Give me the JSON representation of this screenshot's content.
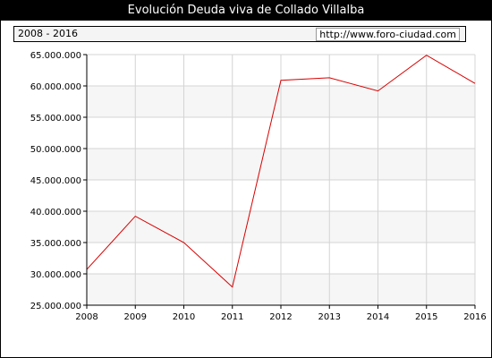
{
  "title": "Evolución Deuda viva de Collado Villalba",
  "header": {
    "range_label": "2008 - 2016",
    "source_url": "http://www.foro-ciudad.com"
  },
  "colors": {
    "line": "#d80000",
    "band": "#f6f6f6",
    "grid": "#d4d4d4",
    "title_bg": "#000000"
  },
  "chart_data": {
    "type": "line",
    "title": "Evolución Deuda viva de Collado Villalba",
    "xlabel": "",
    "ylabel": "",
    "categories": [
      "2008",
      "2009",
      "2010",
      "2011",
      "2012",
      "2013",
      "2014",
      "2015",
      "2016"
    ],
    "series": [
      {
        "values": [
          30700000,
          39200000,
          35000000,
          27900000,
          60900000,
          61300000,
          59200000,
          64900000,
          60400000
        ]
      }
    ],
    "ylim": [
      25000000,
      65000000
    ],
    "yticks": [
      25000000,
      30000000,
      35000000,
      40000000,
      45000000,
      50000000,
      55000000,
      60000000,
      65000000
    ],
    "ytick_labels": [
      "25.000.000",
      "30.000.000",
      "35.000.000",
      "40.000.000",
      "45.000.000",
      "50.000.000",
      "55.000.000",
      "60.000.000",
      "65.000.000"
    ],
    "grid": true,
    "legend": "none"
  }
}
